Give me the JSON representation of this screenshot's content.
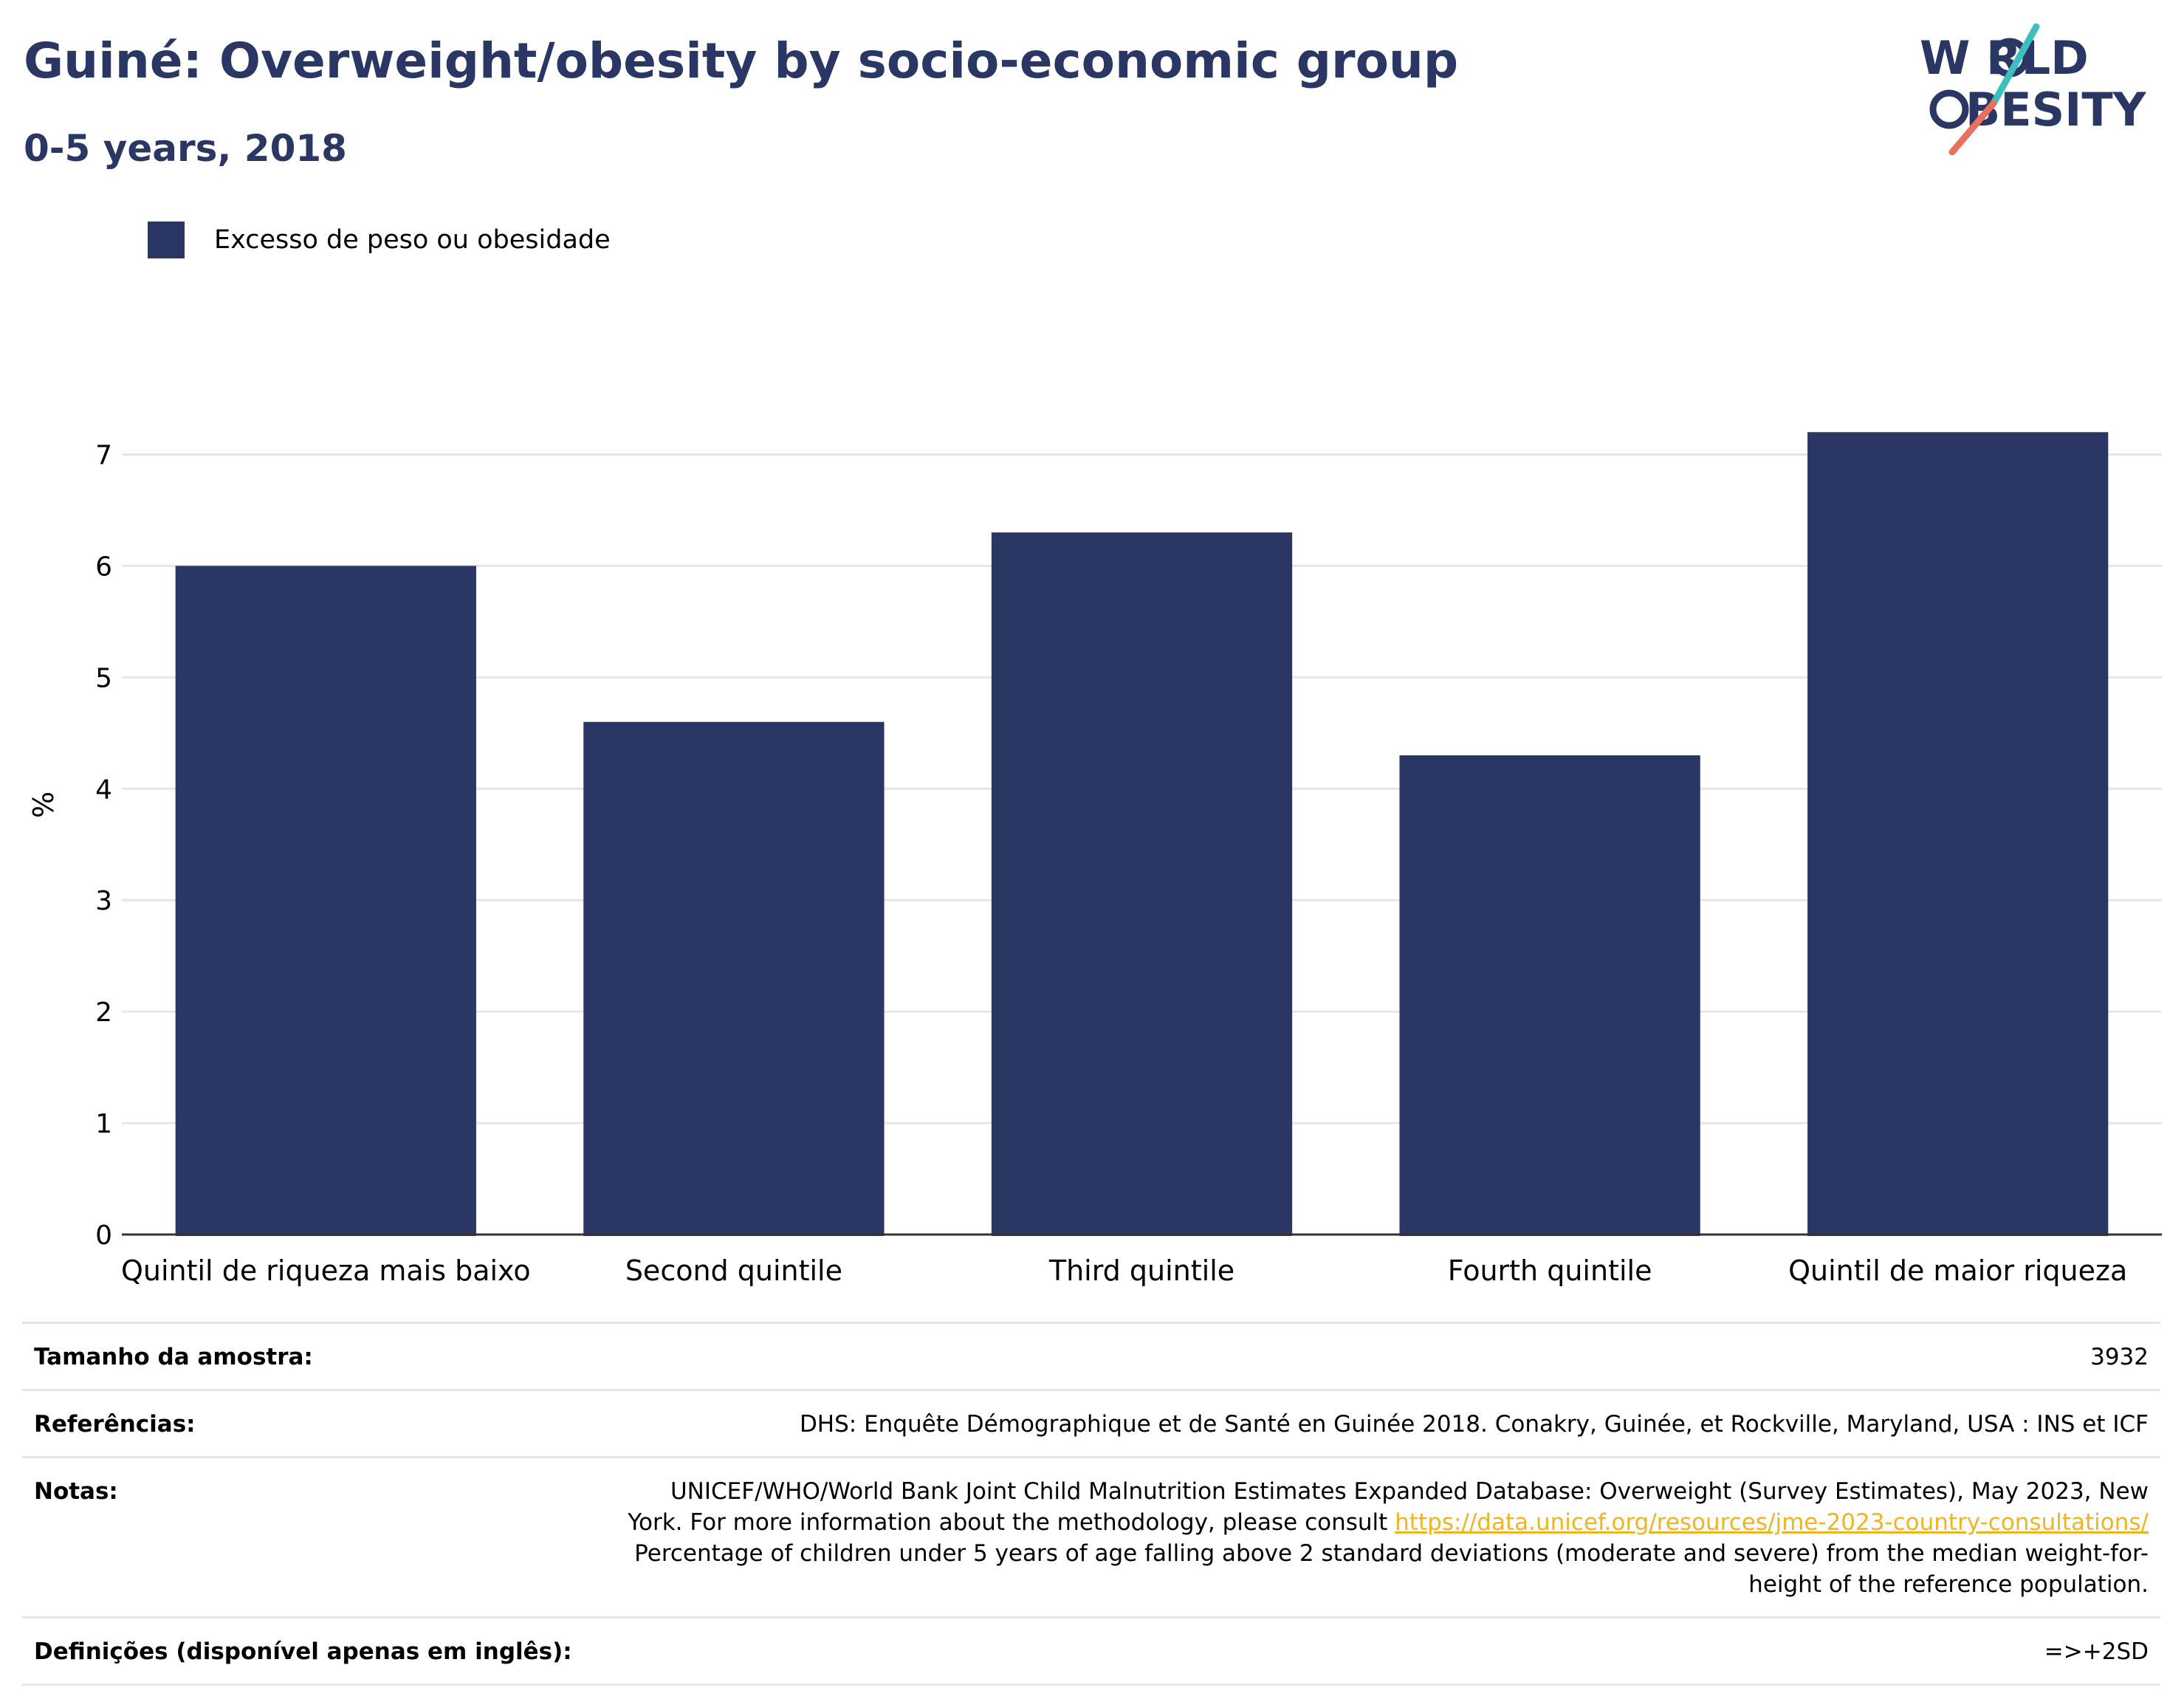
{
  "header": {
    "title": "Guiné: Overweight/obesity by socio-economic group",
    "subtitle": "0-5 years, 2018"
  },
  "logo": {
    "line1": "W RLD",
    "line2": "BESITY",
    "colors": {
      "navy": "#2a3663",
      "teal": "#3ebfbf",
      "coral": "#e8705f"
    }
  },
  "chart_data": {
    "type": "bar",
    "categories": [
      "Quintil de riqueza mais baixo",
      "Second quintile",
      "Third quintile",
      "Fourth quintile",
      "Quintil de maior riqueza"
    ],
    "series": [
      {
        "name": "Excesso de peso ou obesidade",
        "values": [
          6.0,
          4.6,
          6.3,
          4.3,
          7.2
        ],
        "color": "#2a3663"
      }
    ],
    "ylabel": "%",
    "ylim": [
      0,
      7.5
    ],
    "yticks": [
      0,
      1,
      2,
      3,
      4,
      5,
      6,
      7
    ],
    "grid": true,
    "legend_position": "top-left"
  },
  "info": {
    "sample_label": "Tamanho da amostra:",
    "sample_value": "3932",
    "refs_label": "Referências:",
    "refs_value": "DHS: Enquête Démographique et de Santé en Guinée 2018. Conakry, Guinée, et Rockville, Maryland, USA : INS et ICF",
    "notes_label": "Notas:",
    "notes_line1": "UNICEF/WHO/World Bank Joint Child Malnutrition Estimates Expanded Database: Overweight (Survey Estimates), May 2023, New",
    "notes_line2_prefix": "York. For more information about the methodology, please consult ",
    "notes_link": "https://data.unicef.org/resources/jme-2023-country-consultations/",
    "notes_line3": "Percentage of children under 5 years of age falling above 2 standard deviations (moderate and severe) from the median weight-for-",
    "notes_line4": "height of the reference population.",
    "defs_label": "Definições (disponível apenas em inglês):",
    "defs_value": "=>+2SD"
  }
}
